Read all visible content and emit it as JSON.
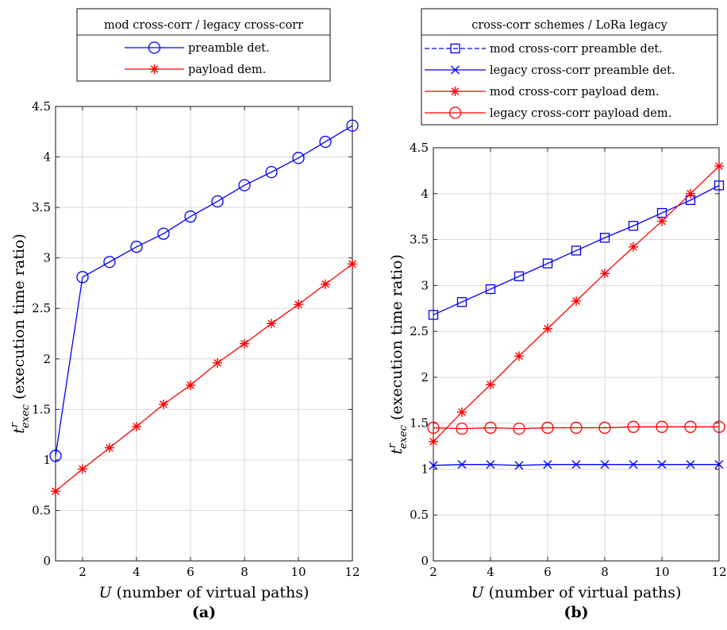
{
  "chart_data": [
    {
      "type": "line",
      "panel_label": "(a)",
      "xlabel_var": "U",
      "xlabel_text": " (number of virtual paths)",
      "ylabel_var": "t",
      "ylabel_sup": "r",
      "ylabel_sub": "exec",
      "ylabel_text": " (execution time ratio)",
      "xlim": [
        1,
        12
      ],
      "ylim": [
        0,
        4.5
      ],
      "xticks": [
        2,
        4,
        6,
        8,
        10,
        12
      ],
      "yticks": [
        0,
        0.5,
        1,
        1.5,
        2,
        2.5,
        3,
        3.5,
        4,
        4.5
      ],
      "grid": true,
      "legend_title": "mod cross-corr / legacy cross-corr",
      "legend_position": "outside-top",
      "series": [
        {
          "name": "preamble det.",
          "color": "#0000ff",
          "marker": "circle",
          "x": [
            1,
            2,
            3,
            4,
            5,
            6,
            7,
            8,
            9,
            10,
            11,
            12
          ],
          "y": [
            1.04,
            2.81,
            2.96,
            3.11,
            3.24,
            3.41,
            3.56,
            3.72,
            3.85,
            3.99,
            4.15,
            4.31
          ]
        },
        {
          "name": "payload dem.",
          "color": "#ff0000",
          "marker": "asterisk",
          "x": [
            1,
            2,
            3,
            4,
            5,
            6,
            7,
            8,
            9,
            10,
            11,
            12
          ],
          "y": [
            0.69,
            0.91,
            1.12,
            1.33,
            1.55,
            1.74,
            1.96,
            2.15,
            2.35,
            2.54,
            2.74,
            2.94
          ]
        }
      ]
    },
    {
      "type": "line",
      "panel_label": "(b)",
      "xlabel_var": "U",
      "xlabel_text": " (number of virtual paths)",
      "ylabel_var": "t",
      "ylabel_sup": "r",
      "ylabel_sub": "exec",
      "ylabel_text": " (execution time ratio)",
      "xlim": [
        2,
        12
      ],
      "ylim": [
        0,
        4.5
      ],
      "xticks": [
        2,
        4,
        6,
        8,
        10,
        12
      ],
      "yticks": [
        0,
        0.5,
        1,
        1.5,
        2,
        2.5,
        3,
        3.5,
        4,
        4.5
      ],
      "grid": true,
      "legend_title": "cross-corr schemes / LoRa legacy",
      "legend_position": "outside-top",
      "series": [
        {
          "name": "mod cross-corr preamble det.",
          "color": "#0000ff",
          "marker": "square",
          "dashed": true,
          "x": [
            2,
            3,
            4,
            5,
            6,
            7,
            8,
            9,
            10,
            11,
            12
          ],
          "y": [
            2.68,
            2.82,
            2.96,
            3.1,
            3.24,
            3.38,
            3.52,
            3.65,
            3.79,
            3.93,
            4.09
          ]
        },
        {
          "name": "legacy cross-corr preamble det.",
          "color": "#0000ff",
          "marker": "x",
          "x": [
            2,
            3,
            4,
            5,
            6,
            7,
            8,
            9,
            10,
            11,
            12
          ],
          "y": [
            1.04,
            1.05,
            1.05,
            1.04,
            1.05,
            1.05,
            1.05,
            1.05,
            1.05,
            1.05,
            1.05
          ]
        },
        {
          "name": "mod cross-corr payload dem.",
          "color": "#ff0000",
          "marker": "asterisk",
          "x": [
            2,
            3,
            4,
            5,
            6,
            7,
            8,
            9,
            10,
            11,
            12
          ],
          "y": [
            1.3,
            1.62,
            1.92,
            2.23,
            2.53,
            2.83,
            3.13,
            3.42,
            3.7,
            4.0,
            4.3
          ]
        },
        {
          "name": "legacy cross-corr payload dem.",
          "color": "#ff0000",
          "marker": "circle",
          "x": [
            2,
            3,
            4,
            5,
            6,
            7,
            8,
            9,
            10,
            11,
            12
          ],
          "y": [
            1.45,
            1.44,
            1.45,
            1.44,
            1.45,
            1.45,
            1.45,
            1.46,
            1.46,
            1.46,
            1.46
          ]
        }
      ]
    }
  ]
}
